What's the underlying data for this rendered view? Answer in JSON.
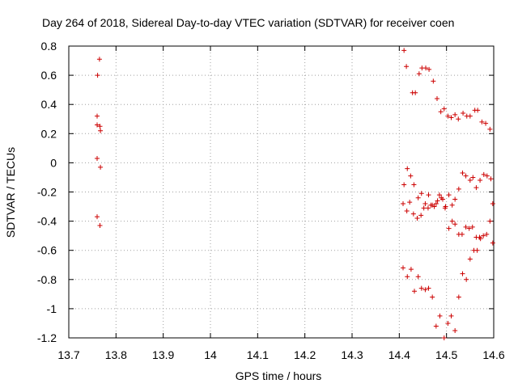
{
  "chart_data": {
    "type": "scatter",
    "title": "Day 264 of 2018, Sidereal Day-to-day VTEC variation (SDTVAR) for receiver coen",
    "xlabel": "GPS time / hours",
    "ylabel": "SDTVAR / TECUs",
    "xlim": [
      13.7,
      14.6
    ],
    "ylim": [
      -1.2,
      0.8
    ],
    "xticks": [
      "13.7",
      "13.8",
      "13.9",
      "14",
      "14.1",
      "14.2",
      "14.3",
      "14.4",
      "14.5",
      "14.6"
    ],
    "yticks": [
      "-1.2",
      "-1",
      "-0.8",
      "-0.6",
      "-0.4",
      "-0.2",
      "0",
      "0.2",
      "0.4",
      "0.6",
      "0.8"
    ],
    "grid": true,
    "marker": "+",
    "color": "#cc0000",
    "points": [
      [
        13.765,
        0.71
      ],
      [
        13.761,
        0.6
      ],
      [
        13.76,
        0.32
      ],
      [
        13.76,
        0.26
      ],
      [
        13.766,
        0.25
      ],
      [
        13.767,
        0.22
      ],
      [
        13.76,
        0.03
      ],
      [
        13.767,
        -0.03
      ],
      [
        13.76,
        -0.37
      ],
      [
        13.766,
        -0.43
      ],
      [
        14.41,
        0.77
      ],
      [
        14.415,
        0.66
      ],
      [
        14.428,
        0.48
      ],
      [
        14.434,
        0.48
      ],
      [
        14.442,
        0.61
      ],
      [
        14.448,
        0.65
      ],
      [
        14.456,
        0.65
      ],
      [
        14.463,
        0.64
      ],
      [
        14.472,
        0.56
      ],
      [
        14.48,
        0.44
      ],
      [
        14.488,
        0.35
      ],
      [
        14.495,
        0.37
      ],
      [
        14.503,
        0.32
      ],
      [
        14.51,
        0.31
      ],
      [
        14.518,
        0.33
      ],
      [
        14.525,
        0.3
      ],
      [
        14.535,
        0.34
      ],
      [
        14.543,
        0.32
      ],
      [
        14.55,
        0.32
      ],
      [
        14.56,
        0.36
      ],
      [
        14.566,
        0.36
      ],
      [
        14.575,
        0.28
      ],
      [
        14.583,
        0.27
      ],
      [
        14.592,
        0.23
      ],
      [
        14.41,
        -0.15
      ],
      [
        14.417,
        -0.04
      ],
      [
        14.424,
        -0.09
      ],
      [
        14.431,
        -0.15
      ],
      [
        14.44,
        -0.24
      ],
      [
        14.447,
        -0.21
      ],
      [
        14.455,
        -0.28
      ],
      [
        14.462,
        -0.22
      ],
      [
        14.47,
        -0.29
      ],
      [
        14.478,
        -0.28
      ],
      [
        14.485,
        -0.22
      ],
      [
        14.492,
        -0.25
      ],
      [
        14.498,
        -0.3
      ],
      [
        14.505,
        -0.22
      ],
      [
        14.512,
        -0.29
      ],
      [
        14.518,
        -0.25
      ],
      [
        14.526,
        -0.18
      ],
      [
        14.534,
        -0.07
      ],
      [
        14.541,
        -0.09
      ],
      [
        14.55,
        -0.12
      ],
      [
        14.556,
        -0.1
      ],
      [
        14.563,
        -0.17
      ],
      [
        14.571,
        -0.12
      ],
      [
        14.579,
        -0.08
      ],
      [
        14.586,
        -0.09
      ],
      [
        14.594,
        -0.11
      ],
      [
        14.408,
        -0.28
      ],
      [
        14.416,
        -0.33
      ],
      [
        14.422,
        -0.27
      ],
      [
        14.43,
        -0.35
      ],
      [
        14.438,
        -0.38
      ],
      [
        14.446,
        -0.36
      ],
      [
        14.452,
        -0.31
      ],
      [
        14.461,
        -0.31
      ],
      [
        14.467,
        -0.29
      ],
      [
        14.474,
        -0.3
      ],
      [
        14.481,
        -0.26
      ],
      [
        14.489,
        -0.24
      ],
      [
        14.497,
        -0.31
      ],
      [
        14.505,
        -0.45
      ],
      [
        14.512,
        -0.4
      ],
      [
        14.518,
        -0.42
      ],
      [
        14.526,
        -0.49
      ],
      [
        14.533,
        -0.49
      ],
      [
        14.541,
        -0.44
      ],
      [
        14.548,
        -0.45
      ],
      [
        14.555,
        -0.44
      ],
      [
        14.563,
        -0.51
      ],
      [
        14.57,
        -0.51
      ],
      [
        14.578,
        -0.5
      ],
      [
        14.585,
        -0.49
      ],
      [
        14.592,
        -0.4
      ],
      [
        14.598,
        -0.55
      ],
      [
        14.598,
        -0.28
      ],
      [
        14.408,
        -0.72
      ],
      [
        14.417,
        -0.78
      ],
      [
        14.425,
        -0.73
      ],
      [
        14.432,
        -0.88
      ],
      [
        14.44,
        -0.78
      ],
      [
        14.447,
        -0.86
      ],
      [
        14.455,
        -0.87
      ],
      [
        14.462,
        -0.86
      ],
      [
        14.47,
        -0.92
      ],
      [
        14.478,
        -1.12
      ],
      [
        14.486,
        -1.05
      ],
      [
        14.495,
        -1.2
      ],
      [
        14.503,
        -1.1
      ],
      [
        14.51,
        -1.05
      ],
      [
        14.518,
        -1.15
      ],
      [
        14.526,
        -0.92
      ],
      [
        14.534,
        -0.76
      ],
      [
        14.542,
        -0.8
      ],
      [
        14.55,
        -0.66
      ],
      [
        14.558,
        -0.6
      ],
      [
        14.565,
        -0.6
      ],
      [
        14.572,
        -0.52
      ]
    ]
  }
}
